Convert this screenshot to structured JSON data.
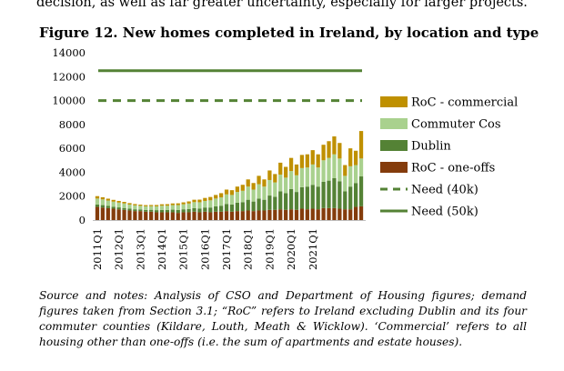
{
  "page": {
    "top_text": "decision, as well as far greater uncertainty, especially for larger projects.",
    "figure_title": "Figure 12. New homes completed in Ireland, by location and type",
    "notes": "Source and notes: Analysis of CSO and Department of Housing figures; demand figures taken from Section 3.1; “RoC” refers to Ireland excluding Dublin and its four commuter counties (Kildare, Louth, Meath & Wicklow). ‘Commercial’ refers to all housing other than one-offs (i.e. the sum of apartments and estate houses)."
  },
  "chart_data": {
    "type": "bar",
    "stacked": true,
    "ylim": [
      0,
      14000
    ],
    "yticks": [
      0,
      2000,
      4000,
      6000,
      8000,
      10000,
      12000,
      14000
    ],
    "ytick_labels": [
      "0",
      "2000",
      "4000",
      "6000",
      "8000",
      "10000",
      "12000",
      "14000"
    ],
    "xtick_labels": [
      "2011Q1",
      "2012Q1",
      "2013Q1",
      "2014Q1",
      "2015Q1",
      "2016Q1",
      "2017Q1",
      "2018Q1",
      "2019Q1",
      "2020Q1",
      "2021Q1"
    ],
    "grid": false,
    "legend_position": "right",
    "series": [
      {
        "name": "RoC - one-offs",
        "color": "#843C0C",
        "values": [
          1100,
          1050,
          1000,
          950,
          900,
          850,
          800,
          750,
          750,
          700,
          700,
          650,
          650,
          650,
          650,
          600,
          650,
          650,
          700,
          650,
          700,
          650,
          700,
          700,
          750,
          700,
          750,
          750,
          800,
          750,
          800,
          800,
          850,
          850,
          900,
          850,
          900,
          850,
          950,
          900,
          950,
          900,
          1000,
          1000,
          1000,
          950,
          900,
          900,
          1100,
          1150
        ]
      },
      {
        "name": "Dublin",
        "color": "#548235",
        "values": [
          200,
          200,
          180,
          170,
          160,
          160,
          150,
          150,
          140,
          150,
          160,
          180,
          200,
          200,
          220,
          250,
          250,
          280,
          300,
          320,
          350,
          400,
          450,
          500,
          600,
          600,
          700,
          750,
          900,
          800,
          1000,
          900,
          1200,
          1100,
          1500,
          1400,
          1700,
          1500,
          1800,
          1900,
          2000,
          1900,
          2200,
          2300,
          2500,
          2300,
          1500,
          1900,
          2000,
          2500
        ]
      },
      {
        "name": "Commuter Cos",
        "color": "#A9D18E",
        "values": [
          500,
          480,
          450,
          420,
          400,
          380,
          350,
          330,
          300,
          300,
          300,
          320,
          350,
          350,
          380,
          400,
          420,
          450,
          500,
          520,
          550,
          600,
          650,
          700,
          800,
          800,
          900,
          950,
          1100,
          1000,
          1200,
          1100,
          1300,
          1200,
          1400,
          1300,
          1500,
          1400,
          1600,
          1600,
          1700,
          1600,
          1800,
          1900,
          2000,
          1900,
          1300,
          1700,
          1500,
          1500
        ]
      },
      {
        "name": "RoC - commercial",
        "color": "#BF9000",
        "values": [
          200,
          180,
          160,
          150,
          140,
          130,
          120,
          110,
          100,
          100,
          100,
          110,
          120,
          130,
          140,
          150,
          160,
          180,
          200,
          220,
          250,
          280,
          300,
          350,
          400,
          400,
          450,
          500,
          600,
          550,
          700,
          600,
          800,
          700,
          1000,
          900,
          1100,
          900,
          1100,
          1100,
          1200,
          1100,
          1300,
          1400,
          1500,
          1300,
          900,
          1500,
          1200,
          2300
        ]
      },
      {
        "name": "Need (40k)",
        "type": "line",
        "dash": true,
        "color": "#548235",
        "value": 10000
      },
      {
        "name": "Need (50k)",
        "type": "line",
        "dash": false,
        "color": "#548235",
        "value": 12500
      }
    ]
  }
}
